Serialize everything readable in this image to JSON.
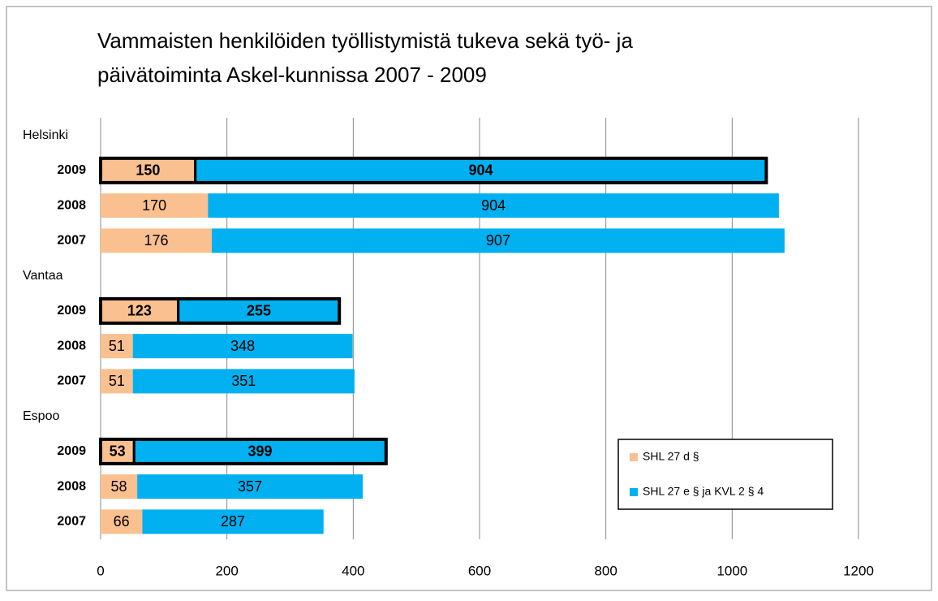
{
  "chart_data": {
    "type": "stacked_barh",
    "title": [
      "Vammaisten henkilöiden työllistymistä tukeva sekä työ- ja",
      "päivätoiminta Askel-kunnissa 2007 - 2009"
    ],
    "categories": [
      "Helsinki",
      "2009",
      "2008",
      "2007",
      "Vantaa",
      "2009",
      "2008",
      "2007",
      "Espoo",
      "2009",
      "2008",
      "2007"
    ],
    "outlined": [
      false,
      true,
      false,
      false,
      false,
      true,
      false,
      false,
      false,
      true,
      false,
      false
    ],
    "series": [
      {
        "name": "SHL 27 d §",
        "color": "#fac090",
        "values": [
          null,
          150,
          170,
          176,
          null,
          123,
          51,
          51,
          null,
          53,
          58,
          66
        ]
      },
      {
        "name": "SHL 27 e § ja KVL 2 § 4",
        "color": "#00b0f0",
        "values": [
          null,
          904,
          904,
          907,
          null,
          255,
          348,
          351,
          null,
          399,
          357,
          287
        ]
      }
    ],
    "xlim": [
      0,
      1200
    ],
    "xticks": [
      0,
      200,
      400,
      600,
      800,
      1000,
      1200
    ],
    "grid": true,
    "legend": "lower right"
  }
}
